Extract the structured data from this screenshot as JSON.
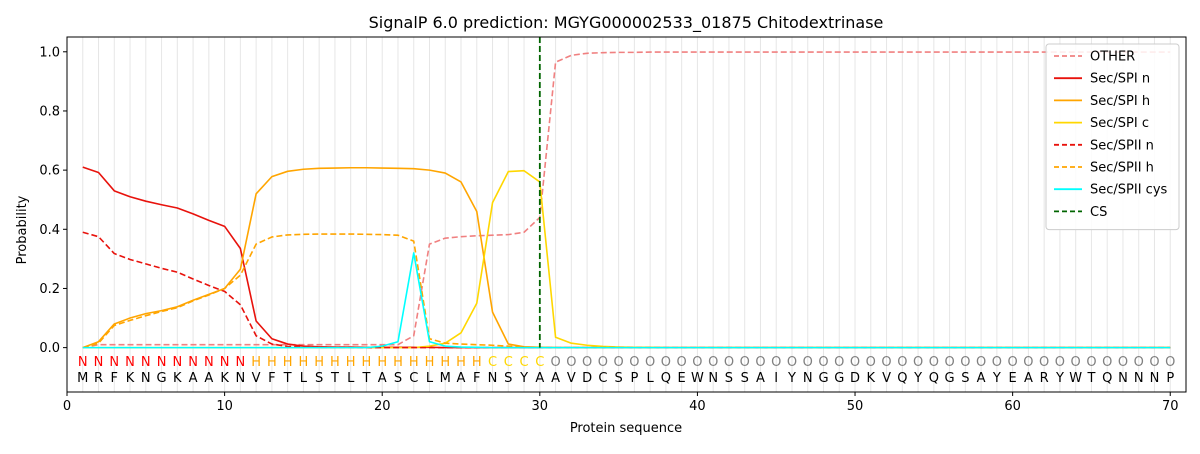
{
  "chart_data": {
    "type": "line",
    "title": "SignalP 6.0 prediction: MGYG000002533_01875 Chitodextrinase",
    "xlabel": "Protein sequence",
    "ylabel": "Probability",
    "xlim": [
      0,
      71
    ],
    "ylim": [
      -0.15,
      1.05
    ],
    "xticks": [
      0,
      10,
      20,
      30,
      40,
      50,
      60,
      70
    ],
    "yticks": [
      0.0,
      0.2,
      0.4,
      0.6,
      0.8,
      1.0
    ],
    "xtick_labels": [
      "0",
      "10",
      "20",
      "30",
      "40",
      "50",
      "60",
      "70"
    ],
    "ytick_labels": [
      "0.0",
      "0.2",
      "0.4",
      "0.6",
      "0.8",
      "1.0"
    ],
    "grid": "vertical lines at each residue",
    "legend_position": "top-right",
    "cleavage_site": {
      "name": "CS",
      "x": 30,
      "color": "#006400",
      "style": "dashed"
    },
    "sequence": [
      "M",
      "R",
      "F",
      "K",
      "N",
      "G",
      "K",
      "A",
      "A",
      "K",
      "N",
      "V",
      "F",
      "T",
      "L",
      "S",
      "T",
      "L",
      "T",
      "A",
      "S",
      "C",
      "L",
      "M",
      "A",
      "F",
      "N",
      "S",
      "Y",
      "A",
      "A",
      "V",
      "D",
      "C",
      "S",
      "P",
      "L",
      "Q",
      "E",
      "W",
      "N",
      "S",
      "S",
      "A",
      "I",
      "Y",
      "N",
      "G",
      "G",
      "D",
      "K",
      "V",
      "Q",
      "Y",
      "Q",
      "G",
      "S",
      "A",
      "Y",
      "E",
      "A",
      "R",
      "Y",
      "W",
      "T",
      "Q",
      "N",
      "N",
      "N",
      "P"
    ],
    "labels": [
      "N",
      "N",
      "N",
      "N",
      "N",
      "N",
      "N",
      "N",
      "N",
      "N",
      "N",
      "H",
      "H",
      "H",
      "H",
      "H",
      "H",
      "H",
      "H",
      "H",
      "H",
      "H",
      "H",
      "H",
      "H",
      "H",
      "C",
      "C",
      "C",
      "C",
      "O",
      "O",
      "O",
      "O",
      "O",
      "O",
      "O",
      "O",
      "O",
      "O",
      "O",
      "O",
      "O",
      "O",
      "O",
      "O",
      "O",
      "O",
      "O",
      "O",
      "O",
      "O",
      "O",
      "O",
      "O",
      "O",
      "O",
      "O",
      "O",
      "O",
      "O",
      "O",
      "O",
      "O",
      "O",
      "O",
      "O",
      "O",
      "O",
      "O"
    ],
    "label_colors": {
      "N": "#ff0000",
      "H": "#ffa500",
      "C": "#ffd700",
      "O": "#808080"
    },
    "series": [
      {
        "name": "OTHER",
        "color": "#f08080",
        "dash": true,
        "values": [
          0.0,
          0.01,
          0.01,
          0.01,
          0.01,
          0.01,
          0.01,
          0.01,
          0.01,
          0.01,
          0.01,
          0.01,
          0.01,
          0.01,
          0.01,
          0.01,
          0.01,
          0.01,
          0.01,
          0.01,
          0.01,
          0.04,
          0.35,
          0.37,
          0.375,
          0.378,
          0.38,
          0.382,
          0.39,
          0.44,
          0.965,
          0.988,
          0.995,
          0.997,
          0.998,
          0.998,
          0.999,
          0.999,
          0.999,
          0.999,
          0.999,
          0.999,
          0.999,
          0.999,
          0.999,
          0.999,
          0.999,
          0.999,
          0.999,
          0.999,
          0.999,
          0.999,
          0.999,
          0.999,
          0.999,
          0.999,
          0.999,
          0.999,
          0.999,
          0.999,
          0.999,
          0.999,
          0.999,
          0.999,
          0.999,
          0.999,
          0.999,
          0.999,
          0.999,
          0.999
        ]
      },
      {
        "name": "Sec/SPI n",
        "color": "#e8120c",
        "dash": false,
        "values": [
          0.61,
          0.592,
          0.53,
          0.51,
          0.495,
          0.483,
          0.472,
          0.452,
          0.43,
          0.41,
          0.335,
          0.09,
          0.03,
          0.012,
          0.005,
          0.003,
          0.002,
          0.002,
          0.001,
          0.001,
          0.001,
          0.001,
          0.001,
          0.0,
          0.0,
          0.0,
          0.0,
          0.0,
          0.0,
          0.0,
          0.0,
          0.0,
          0.0,
          0.0,
          0.0,
          0.0,
          0.0,
          0.0,
          0.0,
          0.0,
          0.0,
          0.0,
          0.0,
          0.0,
          0.0,
          0.0,
          0.0,
          0.0,
          0.0,
          0.0,
          0.0,
          0.0,
          0.0,
          0.0,
          0.0,
          0.0,
          0.0,
          0.0,
          0.0,
          0.0,
          0.0,
          0.0,
          0.0,
          0.0,
          0.0,
          0.0,
          0.0,
          0.0,
          0.0,
          0.0
        ]
      },
      {
        "name": "Sec/SPI h",
        "color": "#ffa500",
        "dash": false,
        "values": [
          0.0,
          0.02,
          0.08,
          0.1,
          0.115,
          0.125,
          0.138,
          0.16,
          0.18,
          0.2,
          0.265,
          0.52,
          0.578,
          0.596,
          0.603,
          0.606,
          0.607,
          0.608,
          0.608,
          0.607,
          0.606,
          0.605,
          0.6,
          0.59,
          0.56,
          0.46,
          0.12,
          0.012,
          0.003,
          0.001,
          0.0,
          0.0,
          0.0,
          0.0,
          0.0,
          0.0,
          0.0,
          0.0,
          0.0,
          0.0,
          0.0,
          0.0,
          0.0,
          0.0,
          0.0,
          0.0,
          0.0,
          0.0,
          0.0,
          0.0,
          0.0,
          0.0,
          0.0,
          0.0,
          0.0,
          0.0,
          0.0,
          0.0,
          0.0,
          0.0,
          0.0,
          0.0,
          0.0,
          0.0,
          0.0,
          0.0,
          0.0,
          0.0,
          0.0,
          0.0
        ]
      },
      {
        "name": "Sec/SPI c",
        "color": "#ffd700",
        "dash": false,
        "values": [
          0.0,
          0.0,
          0.0,
          0.0,
          0.0,
          0.0,
          0.0,
          0.0,
          0.0,
          0.0,
          0.0,
          0.0,
          0.0,
          0.0,
          0.0,
          0.0,
          0.0,
          0.0,
          0.0,
          0.0,
          0.0,
          0.0,
          0.005,
          0.015,
          0.05,
          0.15,
          0.49,
          0.595,
          0.598,
          0.56,
          0.035,
          0.015,
          0.008,
          0.004,
          0.002,
          0.001,
          0.001,
          0.0,
          0.0,
          0.0,
          0.0,
          0.0,
          0.0,
          0.0,
          0.0,
          0.0,
          0.0,
          0.0,
          0.0,
          0.0,
          0.0,
          0.0,
          0.0,
          0.0,
          0.0,
          0.0,
          0.0,
          0.0,
          0.0,
          0.0,
          0.0,
          0.0,
          0.0,
          0.0,
          0.0,
          0.0,
          0.0,
          0.0,
          0.0,
          0.0
        ]
      },
      {
        "name": "Sec/SPII n",
        "color": "#e8120c",
        "dash": true,
        "values": [
          0.39,
          0.375,
          0.318,
          0.298,
          0.283,
          0.268,
          0.255,
          0.232,
          0.21,
          0.19,
          0.145,
          0.04,
          0.012,
          0.004,
          0.002,
          0.001,
          0.001,
          0.001,
          0.0,
          0.0,
          0.0,
          0.0,
          0.0,
          0.0,
          0.0,
          0.0,
          0.0,
          0.0,
          0.0,
          0.0,
          0.0,
          0.0,
          0.0,
          0.0,
          0.0,
          0.0,
          0.0,
          0.0,
          0.0,
          0.0,
          0.0,
          0.0,
          0.0,
          0.0,
          0.0,
          0.0,
          0.0,
          0.0,
          0.0,
          0.0,
          0.0,
          0.0,
          0.0,
          0.0,
          0.0,
          0.0,
          0.0,
          0.0,
          0.0,
          0.0,
          0.0,
          0.0,
          0.0,
          0.0,
          0.0,
          0.0,
          0.0,
          0.0,
          0.0,
          0.0
        ]
      },
      {
        "name": "Sec/SPII h",
        "color": "#ffa500",
        "dash": true,
        "values": [
          0.0,
          0.015,
          0.075,
          0.092,
          0.108,
          0.122,
          0.135,
          0.158,
          0.178,
          0.2,
          0.245,
          0.35,
          0.374,
          0.381,
          0.383,
          0.384,
          0.384,
          0.384,
          0.383,
          0.382,
          0.38,
          0.36,
          0.03,
          0.015,
          0.012,
          0.01,
          0.008,
          0.005,
          0.002,
          0.001,
          0.0,
          0.0,
          0.0,
          0.0,
          0.0,
          0.0,
          0.0,
          0.0,
          0.0,
          0.0,
          0.0,
          0.0,
          0.0,
          0.0,
          0.0,
          0.0,
          0.0,
          0.0,
          0.0,
          0.0,
          0.0,
          0.0,
          0.0,
          0.0,
          0.0,
          0.0,
          0.0,
          0.0,
          0.0,
          0.0,
          0.0,
          0.0,
          0.0,
          0.0,
          0.0,
          0.0,
          0.0,
          0.0,
          0.0,
          0.0
        ]
      },
      {
        "name": "Sec/SPII cys",
        "color": "#00ffff",
        "dash": false,
        "values": [
          0.0,
          0.0,
          0.0,
          0.0,
          0.0,
          0.0,
          0.0,
          0.0,
          0.0,
          0.0,
          0.0,
          0.0,
          0.0,
          0.0,
          0.0,
          0.0,
          0.0,
          0.0,
          0.0,
          0.005,
          0.02,
          0.32,
          0.02,
          0.005,
          0.002,
          0.001,
          0.0,
          0.0,
          0.0,
          0.0,
          0.0,
          0.0,
          0.0,
          0.0,
          0.0,
          0.0,
          0.0,
          0.0,
          0.0,
          0.0,
          0.0,
          0.0,
          0.0,
          0.0,
          0.0,
          0.0,
          0.0,
          0.0,
          0.0,
          0.0,
          0.0,
          0.0,
          0.0,
          0.0,
          0.0,
          0.0,
          0.0,
          0.0,
          0.0,
          0.0,
          0.0,
          0.0,
          0.0,
          0.0,
          0.0,
          0.0,
          0.0,
          0.0,
          0.0,
          0.0
        ]
      }
    ]
  }
}
